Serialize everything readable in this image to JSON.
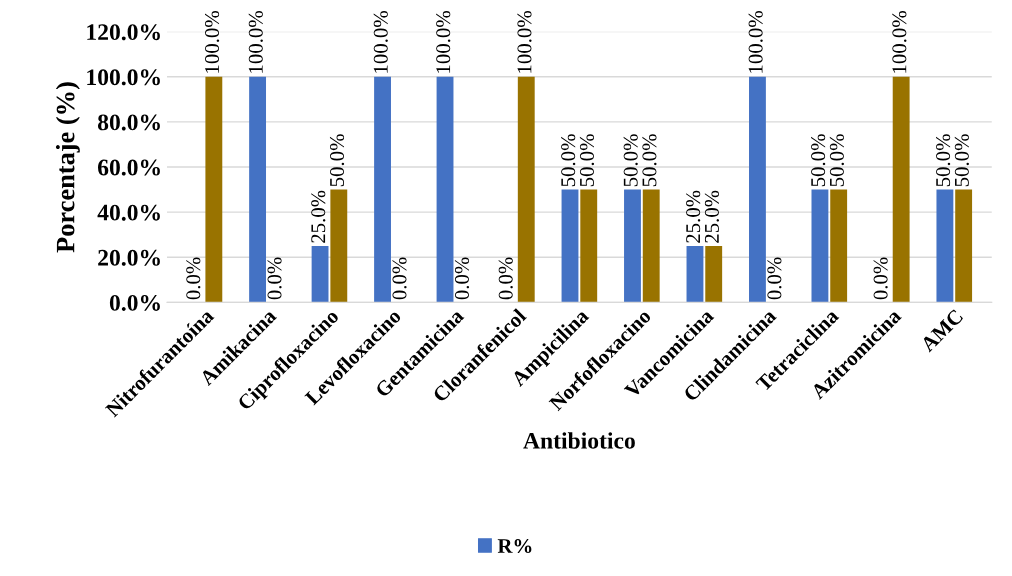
{
  "chart_data": {
    "type": "bar",
    "xlabel": "Antibiotico",
    "ylabel": "Porcentaje (%)",
    "categories": [
      "Nitrofurantoína",
      "Amikacina",
      "Ciprofloxacino",
      "Levofloxacino",
      "Gentamicina",
      "Cloranfenicol",
      "Ampicilina",
      "Norfofloxacino",
      "Vancomicina",
      "Clindamicina",
      "Tetraciclina",
      "Azitromicina",
      "AMC"
    ],
    "series": [
      {
        "name": "R%",
        "color": "#4472c4",
        "values": [
          0,
          100,
          25,
          100,
          100,
          0,
          50,
          50,
          25,
          100,
          50,
          0,
          50
        ],
        "value_labels": [
          "0.0%",
          "100.0%",
          "25.0%",
          "100.0%",
          "100.0%",
          "0.0%",
          "50.0%",
          "50.0%",
          "25.0%",
          "100.0%",
          "50.0%",
          "0.0%",
          "50.0%"
        ]
      },
      {
        "color": "#997300",
        "values": [
          100,
          0,
          50,
          0,
          0,
          100,
          50,
          50,
          25,
          0,
          50,
          100,
          50
        ],
        "value_labels": [
          "100.0%",
          "0.0%",
          "50.0%",
          "0.0%",
          "0.0%",
          "100.0%",
          "50.0%",
          "50.0%",
          "25.0%",
          "0.0%",
          "50.0%",
          "100.0%",
          "50.0%"
        ]
      }
    ],
    "ylim": [
      0,
      120
    ],
    "yticks": [
      {
        "value": 0,
        "label": "0.0%"
      },
      {
        "value": 20,
        "label": "20.0%"
      },
      {
        "value": 40,
        "label": "40.0%"
      },
      {
        "value": 60,
        "label": "60.0%"
      },
      {
        "value": 80,
        "label": "80.0%"
      },
      {
        "value": 100,
        "label": "100.0%"
      },
      {
        "value": 120,
        "label": "120.0%"
      }
    ],
    "grid": "y",
    "legend": "bottom"
  }
}
